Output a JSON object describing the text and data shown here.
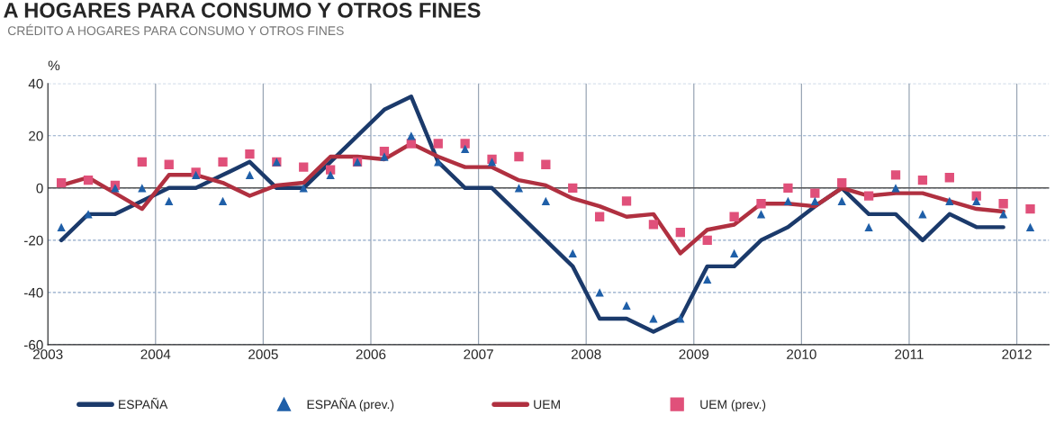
{
  "chart_data": {
    "type": "line",
    "title": "A HOGARES PARA CONSUMO Y OTROS FINES",
    "subtitle": "CRÉDITO A HOGARES PARA CONSUMO Y OTROS FINES",
    "ylabel": "%",
    "x": [
      2003.125,
      2003.375,
      2003.625,
      2003.875,
      2004.125,
      2004.375,
      2004.625,
      2004.875,
      2005.125,
      2005.375,
      2005.625,
      2005.875,
      2006.125,
      2006.375,
      2006.625,
      2006.875,
      2007.125,
      2007.375,
      2007.625,
      2007.875,
      2008.125,
      2008.375,
      2008.625,
      2008.875,
      2009.125,
      2009.375,
      2009.625,
      2009.875,
      2010.125,
      2010.375,
      2010.625,
      2010.875,
      2011.125,
      2011.375,
      2011.625,
      2011.875,
      2012.125
    ],
    "series": [
      {
        "name": "ESPAÑA",
        "type": "line",
        "marker": "none",
        "color": "#1b3a6b",
        "values": [
          -20,
          -10,
          -10,
          -5,
          0,
          0,
          5,
          10,
          0,
          0,
          10,
          20,
          30,
          35,
          10,
          0,
          0,
          -10,
          -20,
          -30,
          -50,
          -50,
          -55,
          -50,
          -30,
          -30,
          -20,
          -15,
          -7,
          0,
          -10,
          -10,
          -20,
          -10,
          -15,
          -15,
          null
        ]
      },
      {
        "name": "ESPAÑA (prev.)",
        "type": "scatter",
        "marker": "triangle",
        "color": "#1f5fa8",
        "values": [
          -15,
          -10,
          0,
          0,
          -5,
          5,
          -5,
          5,
          10,
          0,
          5,
          10,
          12,
          20,
          10,
          15,
          10,
          0,
          -5,
          -25,
          -40,
          -45,
          -50,
          -50,
          -35,
          -25,
          -10,
          -5,
          -5,
          -5,
          -15,
          0,
          -10,
          -5,
          -5,
          -10,
          -15
        ]
      },
      {
        "name": "UEM",
        "type": "line",
        "marker": "none",
        "color": "#b03040",
        "values": [
          1,
          4,
          -2,
          -8,
          5,
          5,
          2,
          -3,
          1,
          2,
          12,
          12,
          11,
          17,
          12,
          8,
          8,
          3,
          1,
          -4,
          -7,
          -11,
          -10,
          -25,
          -16,
          -14,
          -6,
          -6,
          -7,
          0,
          -3,
          -2,
          -2,
          -5,
          -8,
          -9,
          null
        ]
      },
      {
        "name": "UEM (prev.)",
        "type": "scatter",
        "marker": "square",
        "color": "#e0507a",
        "values": [
          2,
          3,
          1,
          10,
          9,
          6,
          10,
          13,
          10,
          8,
          7,
          10,
          14,
          17,
          17,
          17,
          11,
          12,
          9,
          0,
          -11,
          -5,
          -14,
          -17,
          -20,
          -11,
          -6,
          0,
          -2,
          2,
          -3,
          5,
          3,
          4,
          -3,
          -6,
          -8
        ]
      }
    ],
    "xlim": [
      2003,
      2012.3
    ],
    "xticks": [
      2003,
      2004,
      2005,
      2006,
      2007,
      2008,
      2009,
      2010,
      2011,
      2012
    ],
    "ylim": [
      -60,
      40
    ],
    "yticks": [
      -60,
      -40,
      -20,
      0,
      20,
      40
    ],
    "ref_lines": [
      {
        "axis": "y",
        "value": 0,
        "color": "#555555"
      }
    ],
    "grid": true,
    "legend": "bottom"
  }
}
